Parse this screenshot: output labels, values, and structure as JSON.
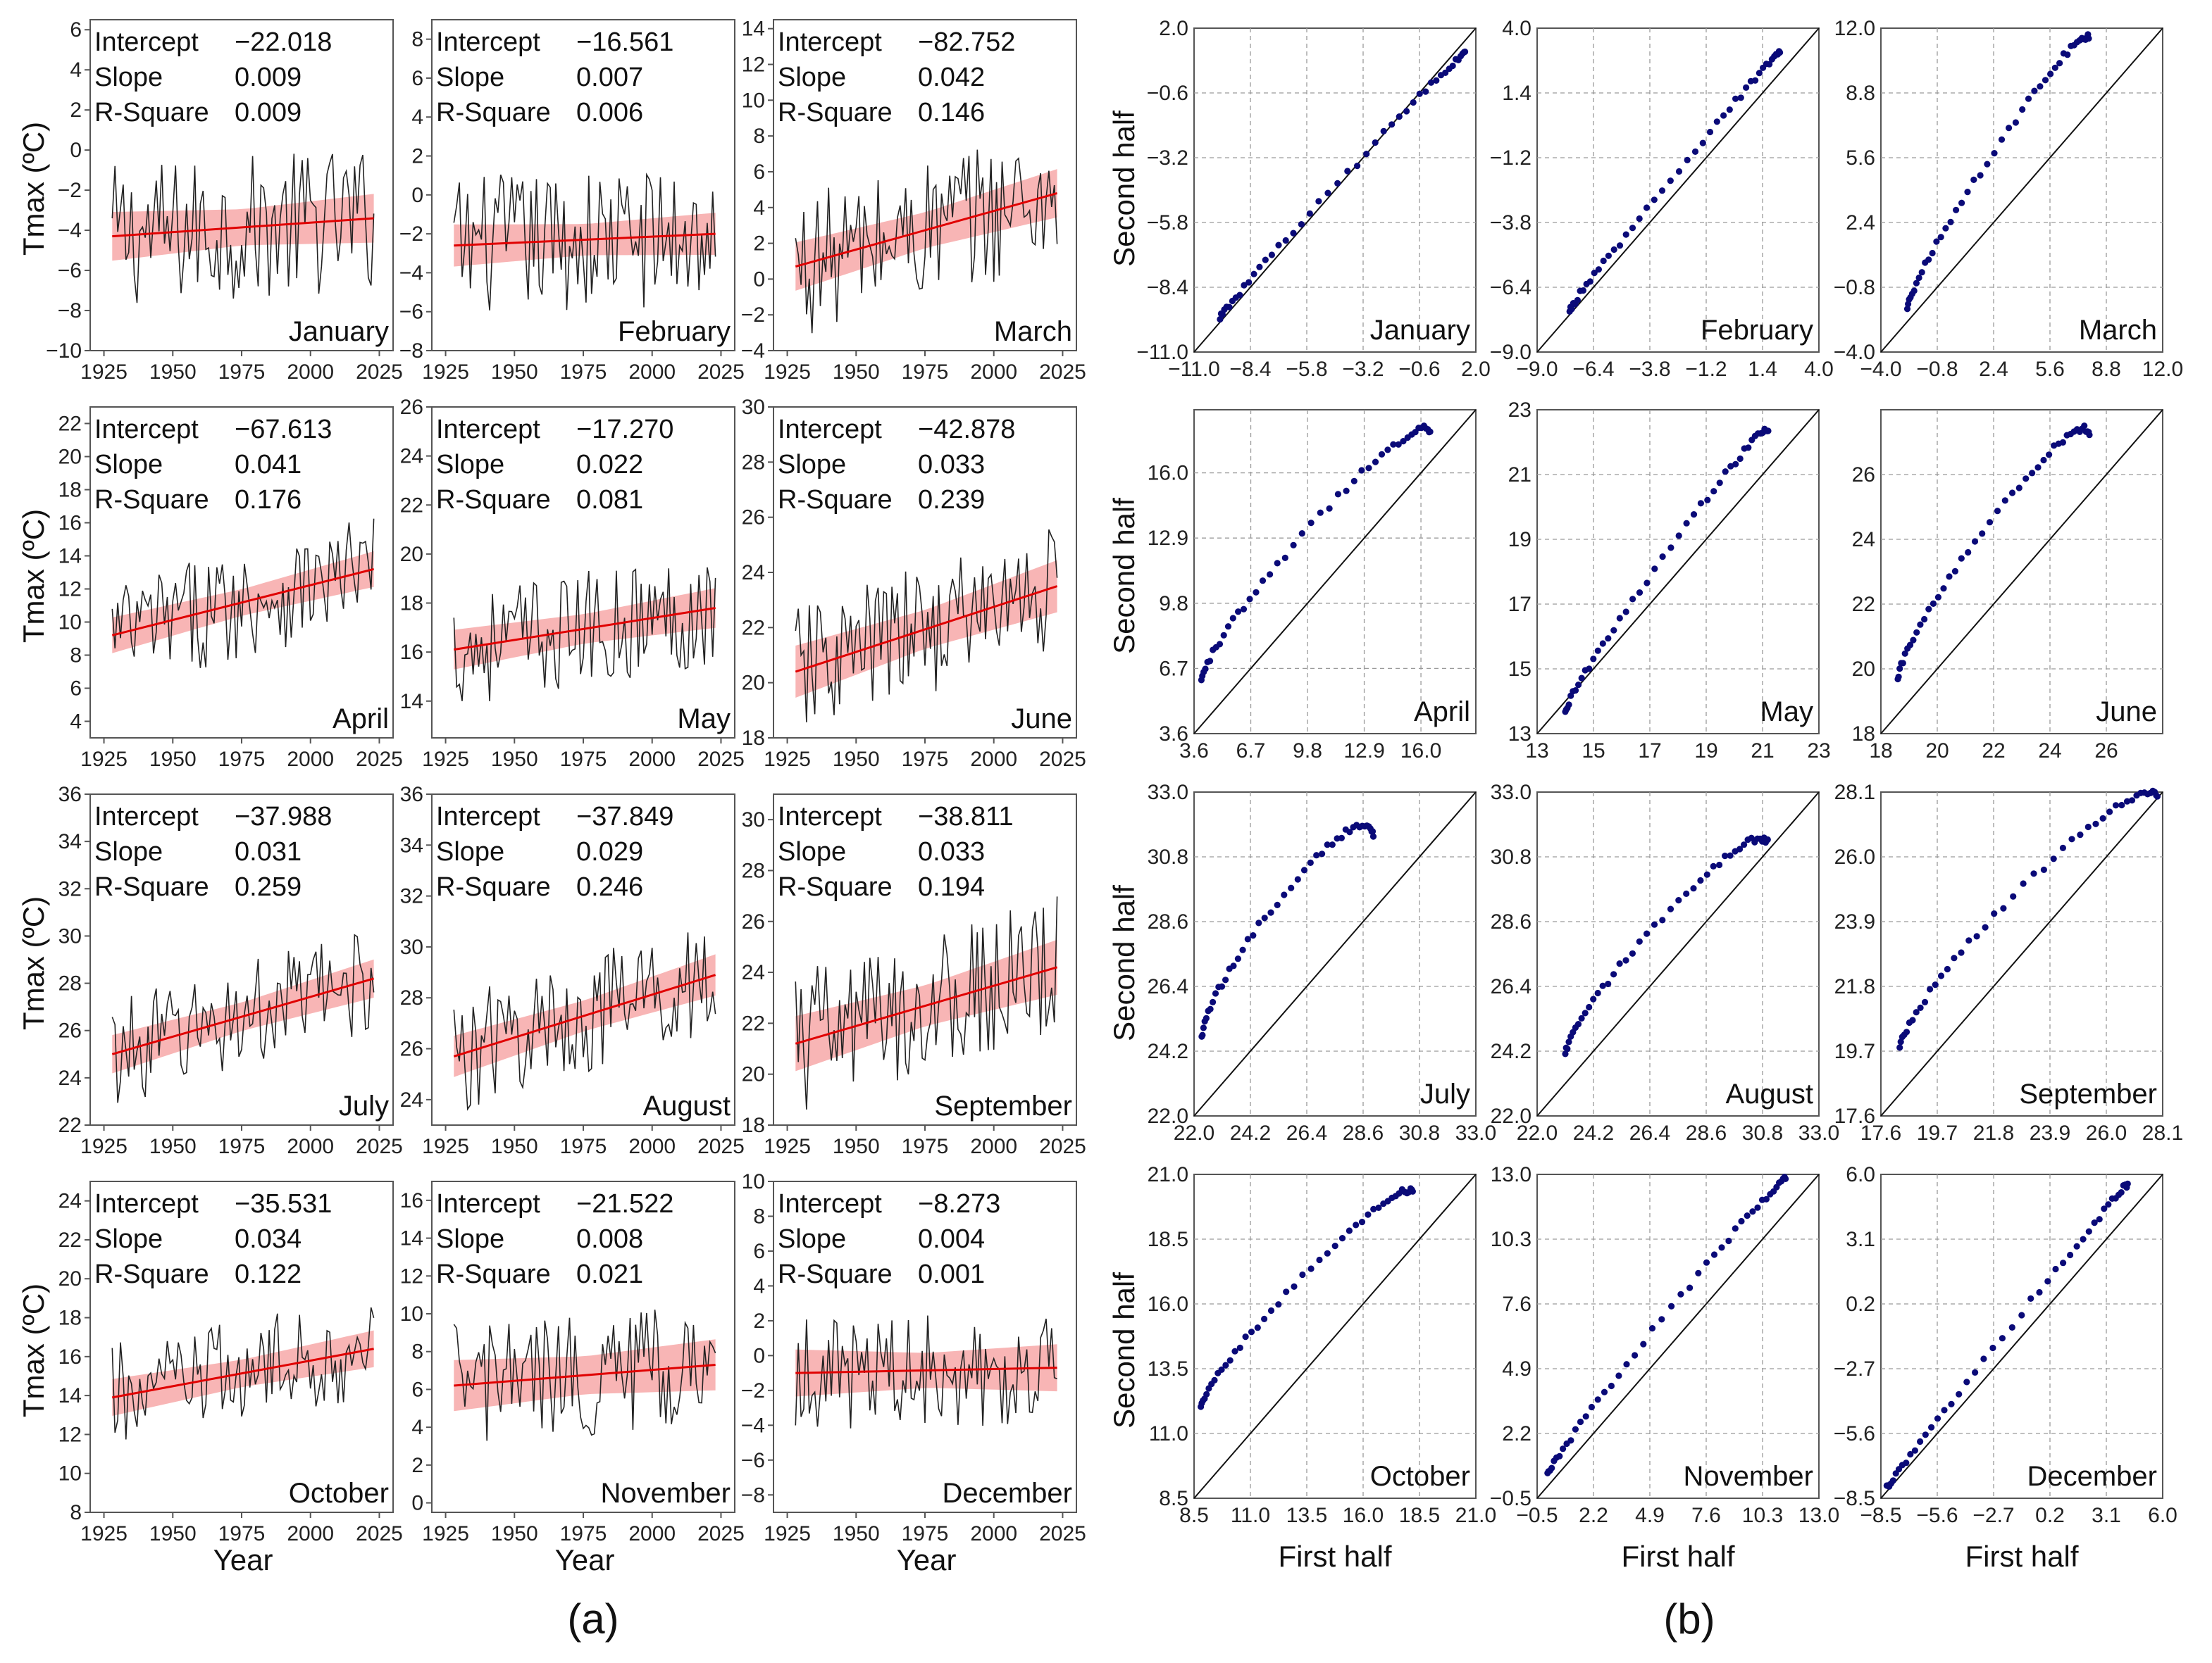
{
  "figure_labels": {
    "a": "(a)",
    "b": "(b)"
  },
  "axis_labels": {
    "ts_y": "Tmax (ºC)",
    "ts_x": "Year",
    "qq_y": "Second half",
    "qq_x": "First half"
  },
  "stat_labels": {
    "intercept": "Intercept",
    "slope": "Slope",
    "rsq": "R-Square"
  },
  "colors": {
    "fit": "#e00000",
    "ci": "#f7a8a8",
    "series": "#222222",
    "points": "#0a0a78",
    "grid": "#9a9a9a"
  },
  "chart_data": [
    {
      "type": "line",
      "title": "(a)",
      "xlabel": "Year",
      "ylabel": "Tmax (ºC)",
      "xlim": [
        1920,
        2030
      ],
      "x_ticks": [
        "1925",
        "1950",
        "1975",
        "2000",
        "2025"
      ],
      "series_note": "monthly Tmax time series 1928-2023 (thin black line) with linear regression fit (red) and confidence band (pink)",
      "panels": [
        {
          "month": "January",
          "intercept": "−22.018",
          "slope": "0.009",
          "rsq": "0.009",
          "ylim": [
            -10,
            6.5
          ],
          "y_ticks": [
            "−10",
            "−8",
            "−6",
            "−4",
            "−2",
            "0",
            "2",
            "4",
            "6"
          ],
          "fit_start": -4.3,
          "fit_end": -3.4,
          "ci_width": 0.9,
          "spread": 2.9
        },
        {
          "month": "February",
          "intercept": "−16.561",
          "slope": "0.007",
          "rsq": "0.006",
          "ylim": [
            -8,
            9
          ],
          "y_ticks": [
            "−8",
            "−6",
            "−4",
            "−2",
            "0",
            "2",
            "4",
            "6",
            "8"
          ],
          "fit_start": -2.6,
          "fit_end": -2.0,
          "ci_width": 0.8,
          "spread": 2.9
        },
        {
          "month": "March",
          "intercept": "−82.752",
          "slope": "0.042",
          "rsq": "0.146",
          "ylim": [
            -4,
            14.5
          ],
          "y_ticks": [
            "−4",
            "−2",
            "0",
            "2",
            "4",
            "6",
            "8",
            "10",
            "12",
            "14"
          ],
          "fit_start": 0.7,
          "fit_end": 4.8,
          "ci_width": 1.0,
          "spread": 3.2
        },
        {
          "month": "April",
          "intercept": "−67.613",
          "slope": "0.041",
          "rsq": "0.176",
          "ylim": [
            3,
            23
          ],
          "y_ticks": [
            "4",
            "6",
            "8",
            "10",
            "12",
            "14",
            "16",
            "18",
            "20",
            "22"
          ],
          "fit_start": 9.2,
          "fit_end": 13.2,
          "ci_width": 0.8,
          "spread": 2.7
        },
        {
          "month": "May",
          "intercept": "−17.270",
          "slope": "0.022",
          "rsq": "0.081",
          "ylim": [
            12.5,
            26
          ],
          "y_ticks": [
            "14",
            "16",
            "18",
            "20",
            "22",
            "24",
            "26"
          ],
          "fit_start": 16.1,
          "fit_end": 17.8,
          "ci_width": 0.6,
          "spread": 1.9
        },
        {
          "month": "June",
          "intercept": "−42.878",
          "slope": "0.033",
          "rsq": "0.239",
          "ylim": [
            18,
            30
          ],
          "y_ticks": [
            "18",
            "20",
            "22",
            "24",
            "26",
            "28",
            "30"
          ],
          "fit_start": 20.4,
          "fit_end": 23.5,
          "ci_width": 0.7,
          "spread": 1.9
        },
        {
          "month": "July",
          "intercept": "−37.988",
          "slope": "0.031",
          "rsq": "0.259",
          "ylim": [
            22,
            36
          ],
          "y_ticks": [
            "22",
            "24",
            "26",
            "28",
            "30",
            "32",
            "34",
            "36"
          ],
          "fit_start": 25.0,
          "fit_end": 28.2,
          "ci_width": 0.6,
          "spread": 1.8
        },
        {
          "month": "August",
          "intercept": "−37.849",
          "slope": "0.029",
          "rsq": "0.246",
          "ylim": [
            23,
            36
          ],
          "y_ticks": [
            "24",
            "26",
            "28",
            "30",
            "32",
            "34",
            "36"
          ],
          "fit_start": 25.7,
          "fit_end": 28.9,
          "ci_width": 0.6,
          "spread": 1.9
        },
        {
          "month": "September",
          "intercept": "−38.811",
          "slope": "0.033",
          "rsq": "0.194",
          "ylim": [
            18,
            31
          ],
          "y_ticks": [
            "18",
            "20",
            "22",
            "24",
            "26",
            "28",
            "30"
          ],
          "fit_start": 21.2,
          "fit_end": 24.2,
          "ci_width": 0.8,
          "spread": 2.3
        },
        {
          "month": "October",
          "intercept": "−35.531",
          "slope": "0.034",
          "rsq": "0.122",
          "ylim": [
            8,
            25
          ],
          "y_ticks": [
            "8",
            "10",
            "12",
            "14",
            "16",
            "18",
            "20",
            "22",
            "24"
          ],
          "fit_start": 13.9,
          "fit_end": 16.4,
          "ci_width": 0.7,
          "spread": 2.2
        },
        {
          "month": "November",
          "intercept": "−21.522",
          "slope": "0.008",
          "rsq": "0.021",
          "ylim": [
            -0.5,
            17
          ],
          "y_ticks": [
            "0",
            "2",
            "4",
            "6",
            "8",
            "10",
            "12",
            "14",
            "16"
          ],
          "fit_start": 6.2,
          "fit_end": 7.3,
          "ci_width": 1.0,
          "spread": 2.6
        },
        {
          "month": "December",
          "intercept": "−8.273",
          "slope": "0.004",
          "rsq": "0.001",
          "ylim": [
            -9,
            10
          ],
          "y_ticks": [
            "−8",
            "−6",
            "−4",
            "−2",
            "0",
            "2",
            "4",
            "6",
            "8",
            "10"
          ],
          "fit_start": -1.0,
          "fit_end": -0.7,
          "ci_width": 1.0,
          "spread": 2.6
        }
      ]
    },
    {
      "type": "scatter",
      "title": "(b)",
      "xlabel": "First half",
      "ylabel": "Second half",
      "series_note": "Q-Q plot of first-half vs second-half quantiles with 1:1 reference line",
      "panels": [
        {
          "month": "January",
          "range": [
            -11,
            2
          ],
          "ticks": [
            "−11.0",
            "−8.4",
            "−5.8",
            "−3.2",
            "−0.6",
            "2.0"
          ],
          "q_start": [
            -9.8,
            -9.6
          ],
          "q_end": [
            1.5,
            1.0
          ],
          "offset": 0.3
        },
        {
          "month": "February",
          "range": [
            -9,
            4
          ],
          "ticks": [
            "−9.0",
            "−6.4",
            "−3.8",
            "−1.2",
            "1.4",
            "4.0"
          ],
          "q_start": [
            -7.5,
            -7.3
          ],
          "q_end": [
            2.2,
            3.0
          ],
          "offset": 0.3
        },
        {
          "month": "March",
          "range": [
            -4,
            12
          ],
          "ticks": [
            "−4.0",
            "−0.8",
            "2.4",
            "5.6",
            "8.8",
            "12.0"
          ],
          "q_start": [
            -2.5,
            -1.8
          ],
          "q_end": [
            7.8,
            11.5
          ],
          "offset": 1.5
        },
        {
          "month": "April",
          "range": [
            3.6,
            19
          ],
          "ticks": [
            "3.6",
            "6.7",
            "9.8",
            "12.9",
            "16.0"
          ],
          "ytick_vals": [
            3.6,
            6.7,
            9.8,
            12.9,
            16.0
          ],
          "q_start": [
            4.0,
            6.2
          ],
          "q_end": [
            16.5,
            18.0
          ],
          "offset": 1.8
        },
        {
          "month": "May",
          "range": [
            13,
            23
          ],
          "ticks": [
            "13",
            "15",
            "17",
            "19",
            "21",
            "23"
          ],
          "q_start": [
            14.0,
            13.7
          ],
          "q_end": [
            21.2,
            22.4
          ],
          "offset": 0.6
        },
        {
          "month": "June",
          "range": [
            18,
            28
          ],
          "ticks": [
            "18",
            "20",
            "22",
            "24",
            "26"
          ],
          "q_start": [
            18.6,
            19.7
          ],
          "q_end": [
            25.4,
            27.3
          ],
          "offset": 1.3
        },
        {
          "month": "July",
          "range": [
            22,
            33
          ],
          "ticks": [
            "22.0",
            "24.2",
            "26.4",
            "28.6",
            "30.8",
            "33.0"
          ],
          "q_start": [
            22.3,
            24.7
          ],
          "q_end": [
            29.0,
            31.6
          ],
          "offset": 1.7
        },
        {
          "month": "August",
          "range": [
            22,
            33
          ],
          "ticks": [
            "22.0",
            "24.2",
            "26.4",
            "28.6",
            "30.8",
            "33.0"
          ],
          "q_start": [
            23.1,
            24.1
          ],
          "q_end": [
            31.0,
            31.3
          ],
          "offset": 1.3
        },
        {
          "month": "September",
          "range": [
            17.6,
            28.1
          ],
          "ticks": [
            "17.6",
            "19.7",
            "21.8",
            "23.9",
            "26.0",
            "28.1"
          ],
          "q_start": [
            18.3,
            19.8
          ],
          "q_end": [
            27.9,
            27.9
          ],
          "offset": 1.5
        },
        {
          "month": "October",
          "range": [
            8.5,
            21
          ],
          "ticks": [
            "8.5",
            "11.0",
            "13.5",
            "16.0",
            "18.5",
            "21.0"
          ],
          "q_start": [
            8.8,
            12.0
          ],
          "q_end": [
            18.2,
            20.3
          ],
          "offset": 1.2
        },
        {
          "month": "November",
          "range": [
            -0.5,
            13
          ],
          "ticks": [
            "−0.5",
            "2.2",
            "4.9",
            "7.6",
            "10.3",
            "13.0"
          ],
          "q_start": [
            0.0,
            0.5
          ],
          "q_end": [
            11.4,
            12.8
          ],
          "offset": 0.6
        },
        {
          "month": "December",
          "range": [
            -8.5,
            6
          ],
          "ticks": [
            "−8.5",
            "−5.6",
            "−2.7",
            "0.2",
            "3.1",
            "6.0"
          ],
          "q_start": [
            -8.2,
            -8.0
          ],
          "q_end": [
            4.2,
            5.6
          ],
          "offset": 0.2
        }
      ]
    }
  ]
}
